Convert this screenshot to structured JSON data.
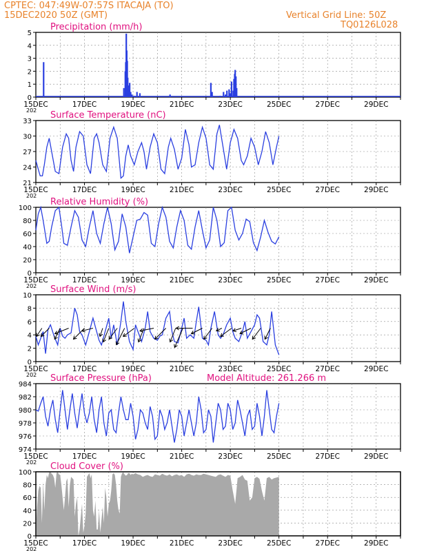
{
  "header": {
    "line1": "CPTEC:   047:49W-07:57S   ITACAJA (TO)",
    "line2": "15DEC2020 50Z (GMT)",
    "grid_note": "Vertical Grid Line: 50Z",
    "code": "TQ0126L028"
  },
  "colors": {
    "header": "#e8822a",
    "title": "#e0117f",
    "line": "#2a3fe0",
    "bar": "#2a3fe0",
    "cloud": "#a9a9a9",
    "arrow": "#000000",
    "grid": "#888888"
  },
  "x_labels": [
    "15DEC",
    "17DEC",
    "19DEC",
    "21DEC",
    "23DEC",
    "25DEC",
    "27DEC",
    "29DEC"
  ],
  "year_stub": "202",
  "chart_data": [
    {
      "type": "bar",
      "title": "Precipitation (mm/h)",
      "ylim": [
        0,
        5
      ],
      "yticks": [
        "0",
        "1",
        "2",
        "3",
        "4",
        "5"
      ],
      "x_days": [
        0.32,
        3.62,
        3.68,
        3.7,
        3.72,
        3.74,
        3.76,
        3.78,
        3.8,
        3.84,
        3.86,
        3.9,
        3.95,
        4.05,
        4.16,
        4.28,
        5.52,
        7.2,
        7.25,
        7.27,
        7.58,
        7.72,
        7.8,
        7.86,
        7.95,
        8.0,
        8.05,
        8.1,
        8.12,
        8.15,
        8.18,
        8.2,
        8.23,
        8.26
      ],
      "values": [
        2.7,
        0.7,
        2.0,
        2.7,
        4.9,
        3.6,
        2.8,
        1.5,
        0.9,
        0.6,
        1.1,
        0.4,
        0.2,
        0.1,
        0.4,
        0.3,
        0.2,
        1.1,
        0.4,
        0.1,
        0.1,
        0.4,
        0.2,
        0.5,
        0.6,
        0.3,
        1.2,
        0.1,
        0.5,
        1.4,
        1.8,
        2.1,
        1.6,
        0.7
      ]
    },
    {
      "type": "line",
      "title": "Surface Temperature (nC)",
      "ylim": [
        20,
        34
      ],
      "yticks": [
        "21",
        "24",
        "27",
        "30",
        "33"
      ],
      "x_days": [
        0,
        0.1,
        0.18,
        0.27,
        0.35,
        0.45,
        0.55,
        0.65,
        0.8,
        0.95,
        1.1,
        1.25,
        1.35,
        1.45,
        1.55,
        1.65,
        1.8,
        1.95,
        2.1,
        2.25,
        2.4,
        2.5,
        2.6,
        2.75,
        2.9,
        3.05,
        3.2,
        3.35,
        3.5,
        3.6,
        3.7,
        3.8,
        3.9,
        4.05,
        4.2,
        4.35,
        4.45,
        4.55,
        4.7,
        4.85,
        5.0,
        5.15,
        5.3,
        5.45,
        5.55,
        5.7,
        5.85,
        6.0,
        6.15,
        6.3,
        6.4,
        6.55,
        6.7,
        6.85,
        7.0,
        7.15,
        7.3,
        7.45,
        7.55,
        7.7,
        7.85,
        8.0,
        8.15,
        8.3,
        8.45,
        8.55,
        8.7,
        8.85,
        9.0,
        9.15,
        9.3,
        9.45,
        9.6,
        9.75,
        9.9,
        10.0
      ],
      "values": [
        25,
        23,
        21.5,
        21.5,
        24,
        28,
        30,
        27,
        22.5,
        22,
        28,
        31,
        30,
        25,
        22.5,
        28,
        31.5,
        30.5,
        24,
        22,
        30,
        31,
        29,
        24,
        22.5,
        30,
        32.5,
        30,
        21,
        21.5,
        26,
        28.5,
        26,
        24,
        27,
        29,
        27,
        23,
        28,
        31,
        29,
        23,
        22,
        28,
        30,
        27.5,
        23,
        25.5,
        32,
        28.5,
        23.5,
        24,
        29,
        32.5,
        30,
        24,
        23,
        31,
        33,
        28,
        23,
        29,
        32,
        30,
        25,
        24,
        26,
        30,
        28,
        24,
        27,
        31.5,
        29,
        24,
        28,
        30.5
      ]
    },
    {
      "type": "line",
      "title": "Relative Humidity (%)",
      "ylim": [
        0,
        100
      ],
      "yticks": [
        "0",
        "20",
        "40",
        "60",
        "80",
        "100"
      ],
      "x_days": [
        0,
        0.1,
        0.2,
        0.3,
        0.45,
        0.55,
        0.65,
        0.8,
        0.95,
        1.05,
        1.15,
        1.3,
        1.45,
        1.6,
        1.75,
        1.9,
        2.05,
        2.2,
        2.35,
        2.5,
        2.65,
        2.8,
        2.95,
        3.1,
        3.25,
        3.4,
        3.55,
        3.7,
        3.85,
        4.0,
        4.15,
        4.3,
        4.45,
        4.6,
        4.75,
        4.9,
        5.05,
        5.2,
        5.35,
        5.5,
        5.65,
        5.8,
        5.95,
        6.1,
        6.25,
        6.4,
        6.55,
        6.7,
        6.85,
        7.0,
        7.15,
        7.3,
        7.45,
        7.6,
        7.75,
        7.9,
        8.05,
        8.2,
        8.35,
        8.5,
        8.65,
        8.8,
        8.95,
        9.1,
        9.25,
        9.4,
        9.55,
        9.7,
        9.85,
        10.0
      ],
      "values": [
        65,
        90,
        100,
        80,
        45,
        48,
        70,
        95,
        100,
        75,
        45,
        42,
        70,
        95,
        85,
        50,
        40,
        70,
        95,
        60,
        45,
        75,
        100,
        75,
        35,
        48,
        90,
        70,
        30,
        55,
        80,
        82,
        92,
        88,
        45,
        40,
        75,
        100,
        85,
        48,
        38,
        70,
        95,
        80,
        42,
        36,
        70,
        95,
        65,
        38,
        50,
        100,
        80,
        40,
        46,
        95,
        100,
        65,
        50,
        60,
        82,
        78,
        46,
        34,
        55,
        80,
        62,
        48,
        44,
        55
      ]
    },
    {
      "type": "line",
      "title": "Surface Wind (m/s)",
      "ylim": [
        0,
        10
      ],
      "yticks": [
        "0",
        "2",
        "4",
        "6",
        "8",
        "10"
      ],
      "x_days": [
        0,
        0.1,
        0.2,
        0.3,
        0.4,
        0.5,
        0.6,
        0.75,
        0.9,
        1.0,
        1.1,
        1.2,
        1.3,
        1.45,
        1.6,
        1.7,
        1.8,
        1.9,
        2.05,
        2.2,
        2.35,
        2.5,
        2.6,
        2.7,
        2.85,
        3.0,
        3.1,
        3.2,
        3.35,
        3.5,
        3.6,
        3.7,
        3.85,
        4.0,
        4.1,
        4.2,
        4.35,
        4.5,
        4.6,
        4.7,
        4.85,
        5.0,
        5.1,
        5.2,
        5.35,
        5.5,
        5.6,
        5.7,
        5.85,
        6.0,
        6.1,
        6.2,
        6.35,
        6.5,
        6.6,
        6.7,
        6.85,
        7.0,
        7.1,
        7.2,
        7.35,
        7.5,
        7.6,
        7.7,
        7.85,
        8.0,
        8.1,
        8.2,
        8.35,
        8.5,
        8.6,
        8.7,
        8.85,
        9.0,
        9.1,
        9.2,
        9.35,
        9.5,
        9.6,
        9.7,
        9.85,
        10.0
      ],
      "values": [
        3.8,
        2.5,
        3.5,
        4.5,
        1.2,
        4.8,
        5.5,
        3.8,
        2.5,
        5.0,
        3.8,
        3.5,
        4.0,
        4.3,
        8.0,
        7.0,
        4.5,
        4.0,
        2.5,
        4.5,
        6.5,
        4.5,
        3.2,
        2.5,
        4.5,
        6.5,
        3.5,
        5.5,
        2.5,
        6.0,
        9.0,
        6.0,
        3.0,
        1.8,
        5.5,
        4.5,
        3.0,
        5.0,
        7.5,
        4.5,
        3.5,
        3.2,
        3.8,
        4.0,
        6.5,
        7.5,
        4.5,
        3.0,
        2.8,
        5.0,
        6.5,
        3.5,
        4.0,
        3.5,
        6.0,
        8.2,
        3.5,
        3.2,
        2.5,
        5.0,
        7.5,
        4.0,
        3.5,
        4.0,
        5.5,
        6.5,
        4.5,
        3.5,
        3.0,
        4.5,
        6.0,
        3.5,
        4.5,
        5.5,
        7.0,
        6.5,
        3.0,
        2.5,
        4.0,
        7.5,
        2.5,
        1.0
      ],
      "arrows_x_days": [
        0.25,
        0.55,
        1.0,
        1.35,
        2.0,
        2.35,
        2.75,
        3.0,
        3.35,
        3.65,
        4.05,
        4.45,
        4.85,
        5.35,
        5.75,
        6.05,
        6.45,
        6.85,
        7.25,
        7.65,
        8.05,
        8.45,
        8.85,
        9.25,
        9.65
      ],
      "arrows_u": [
        -2,
        -3,
        -2,
        -5,
        -4,
        -4,
        -1,
        -2,
        -3,
        -3,
        -4,
        -2,
        -5,
        -4,
        -2,
        -3,
        -6,
        -4,
        -3,
        -2,
        -4,
        -3,
        -4,
        -3,
        -2
      ],
      "arrows_v": [
        -3,
        -3,
        -4,
        -2,
        -4,
        -1,
        -3,
        -5,
        -4,
        -6,
        -3,
        -5,
        -1,
        -4,
        -5,
        -7,
        0,
        -2,
        -4,
        -1,
        -3,
        -1,
        -2,
        -4,
        -4
      ]
    },
    {
      "type": "line",
      "title": "Surface Pressure (hPa)",
      "extra_label": "Model Altitude: 261.266 m",
      "ylim": [
        974,
        984
      ],
      "yticks": [
        "974",
        "976",
        "978",
        "980",
        "982",
        "984"
      ],
      "x_days": [
        0,
        0.1,
        0.2,
        0.3,
        0.4,
        0.5,
        0.6,
        0.7,
        0.8,
        0.9,
        1.0,
        1.1,
        1.2,
        1.3,
        1.4,
        1.5,
        1.6,
        1.7,
        1.8,
        1.9,
        2.0,
        2.1,
        2.2,
        2.3,
        2.4,
        2.5,
        2.6,
        2.7,
        2.8,
        2.9,
        3.0,
        3.1,
        3.2,
        3.3,
        3.4,
        3.5,
        3.6,
        3.7,
        3.8,
        3.9,
        4.0,
        4.1,
        4.2,
        4.3,
        4.4,
        4.5,
        4.6,
        4.7,
        4.8,
        4.9,
        5.0,
        5.1,
        5.2,
        5.3,
        5.4,
        5.5,
        5.6,
        5.7,
        5.8,
        5.9,
        6.0,
        6.1,
        6.2,
        6.3,
        6.4,
        6.5,
        6.6,
        6.7,
        6.8,
        6.9,
        7.0,
        7.1,
        7.2,
        7.3,
        7.4,
        7.5,
        7.6,
        7.7,
        7.8,
        7.9,
        8.0,
        8.1,
        8.2,
        8.3,
        8.4,
        8.5,
        8.6,
        8.7,
        8.8,
        8.9,
        9.0,
        9.1,
        9.2,
        9.3,
        9.4,
        9.5,
        9.6,
        9.7,
        9.8,
        9.9,
        10.0
      ],
      "values": [
        980,
        979.8,
        981,
        982,
        979,
        977.5,
        980,
        981.5,
        978.5,
        976.5,
        980,
        983,
        980,
        977,
        980,
        982.5,
        979.5,
        977.2,
        980,
        982.5,
        979.5,
        978,
        979.5,
        982,
        978.5,
        976.5,
        980,
        982,
        978,
        976,
        979.5,
        980,
        977,
        976.5,
        979.5,
        982,
        980,
        978.5,
        978.5,
        981,
        979,
        975.5,
        977,
        980,
        979.5,
        978,
        977,
        980.5,
        979,
        975.5,
        976,
        980,
        979,
        977,
        978,
        980,
        977.5,
        975,
        977,
        980,
        979,
        976,
        978,
        980,
        978,
        976,
        978,
        982,
        980,
        976.5,
        977,
        980,
        979,
        975,
        978,
        981,
        980,
        977,
        977.5,
        981,
        980,
        977,
        978,
        981.5,
        980,
        978,
        976,
        979,
        980,
        977,
        977.5,
        981,
        979,
        976,
        979,
        983,
        980,
        977,
        976.5,
        979,
        981
      ]
    },
    {
      "type": "area",
      "title": "Cloud Cover (%)",
      "ylim": [
        0,
        100
      ],
      "yticks": [
        "0",
        "20",
        "40",
        "60",
        "80",
        "100"
      ],
      "x_days": [
        0,
        0.05,
        0.1,
        0.15,
        0.2,
        0.25,
        0.3,
        0.35,
        0.4,
        0.45,
        0.5,
        0.55,
        0.6,
        0.65,
        0.7,
        0.75,
        0.8,
        0.85,
        0.9,
        0.95,
        1.0,
        1.05,
        1.1,
        1.15,
        1.2,
        1.25,
        1.3,
        1.35,
        1.4,
        1.45,
        1.5,
        1.55,
        1.6,
        1.65,
        1.7,
        1.75,
        1.8,
        1.85,
        1.9,
        1.95,
        2.0,
        2.05,
        2.1,
        2.15,
        2.2,
        2.25,
        2.3,
        2.35,
        2.4,
        2.45,
        2.5,
        2.55,
        2.6,
        2.65,
        2.7,
        2.75,
        2.8,
        2.85,
        2.9,
        2.95,
        3.0,
        3.05,
        3.1,
        3.15,
        3.2,
        3.25,
        3.3,
        3.35,
        3.4,
        3.45,
        3.5,
        3.55,
        3.6,
        3.65,
        3.7,
        3.75,
        3.8,
        3.85,
        3.9,
        3.95,
        4.0,
        4.1,
        4.2,
        4.3,
        4.4,
        4.5,
        4.6,
        4.7,
        4.8,
        4.9,
        5.0,
        5.1,
        5.2,
        5.3,
        5.4,
        5.5,
        5.6,
        5.7,
        5.8,
        5.9,
        6.0,
        6.1,
        6.2,
        6.3,
        6.4,
        6.5,
        6.6,
        6.7,
        6.8,
        6.9,
        7.0,
        7.1,
        7.2,
        7.3,
        7.4,
        7.5,
        7.6,
        7.7,
        7.8,
        7.9,
        8.0,
        8.1,
        8.2,
        8.3,
        8.4,
        8.5,
        8.6,
        8.7,
        8.8,
        8.9,
        9.0,
        9.1,
        9.2,
        9.3,
        9.4,
        9.5,
        9.6,
        9.7,
        9.8,
        9.9,
        10.0
      ],
      "values": [
        5,
        45,
        70,
        78,
        75,
        20,
        85,
        40,
        80,
        95,
        90,
        100,
        100,
        97,
        95,
        90,
        75,
        98,
        100,
        96,
        95,
        80,
        60,
        40,
        60,
        85,
        90,
        45,
        80,
        92,
        90,
        88,
        30,
        50,
        60,
        0,
        10,
        30,
        50,
        5,
        15,
        35,
        92,
        95,
        98,
        90,
        96,
        40,
        30,
        55,
        10,
        10,
        40,
        5,
        25,
        45,
        20,
        75,
        60,
        30,
        50,
        55,
        70,
        96,
        98,
        95,
        80,
        55,
        40,
        35,
        92,
        98,
        99,
        96,
        94,
        95,
        98,
        98,
        95,
        97,
        96,
        98,
        96,
        95,
        92,
        94,
        95,
        93,
        92,
        96,
        95,
        94,
        97,
        95,
        94,
        96,
        93,
        95,
        96,
        94,
        95,
        92,
        96,
        97,
        95,
        94,
        96,
        95,
        95,
        97,
        96,
        95,
        94,
        93,
        92,
        95,
        96,
        94,
        92,
        95,
        94,
        70,
        50,
        90,
        92,
        95,
        88,
        86,
        55,
        60,
        90,
        92,
        89,
        70,
        55,
        90,
        92,
        88,
        90,
        91,
        92
      ]
    }
  ]
}
